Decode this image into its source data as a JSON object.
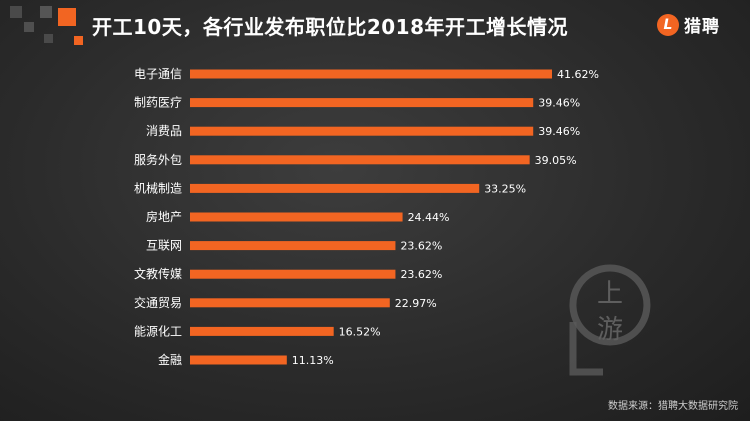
{
  "header": {
    "title": "开工10天，各行业发布职位比2018年开工增长情况",
    "brand_mark": "L",
    "brand_name": "猎聘"
  },
  "watermark": {
    "line1": "上",
    "line2": "游"
  },
  "footer": {
    "source": "数据来源：猎聘大数据研究院"
  },
  "colors": {
    "bar": "#f26522",
    "background": "#2b2b2b",
    "text": "#ffffff"
  },
  "chart_data": {
    "type": "bar",
    "orientation": "horizontal",
    "title": "开工10天，各行业发布职位比2018年开工增长情况",
    "categories": [
      "电子通信",
      "制药医疗",
      "消费品",
      "服务外包",
      "机械制造",
      "房地产",
      "互联网",
      "文教传媒",
      "交通贸易",
      "能源化工",
      "金融"
    ],
    "values": [
      41.62,
      39.46,
      39.46,
      39.05,
      33.25,
      24.44,
      23.62,
      23.62,
      22.97,
      16.52,
      11.13
    ],
    "value_labels": [
      "41.62%",
      "39.46%",
      "39.46%",
      "39.05%",
      "33.25%",
      "24.44%",
      "23.62%",
      "23.62%",
      "22.97%",
      "16.52%",
      "11.13%"
    ],
    "unit": "%",
    "grid": false,
    "legend": "none"
  }
}
